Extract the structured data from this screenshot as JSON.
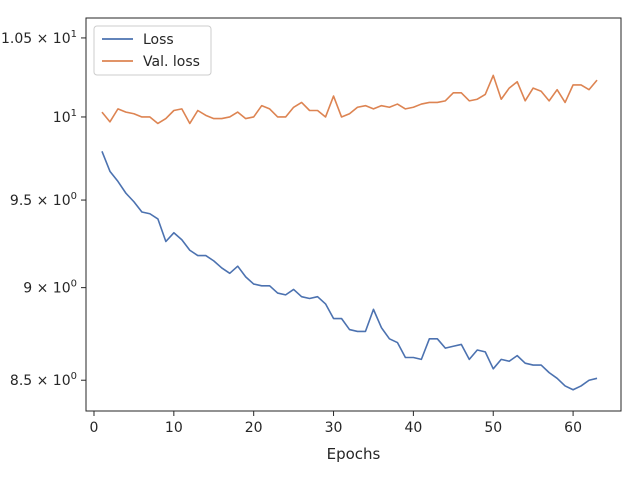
{
  "chart_data": {
    "type": "line",
    "title": "",
    "xlabel": "Epochs",
    "ylabel": "",
    "xlim": [
      -1,
      66
    ],
    "ylim": [
      8.34,
      10.63
    ],
    "yscale": "log",
    "grid": false,
    "legend_placement": "top-left",
    "x_ticks": [
      0,
      10,
      20,
      30,
      40,
      50,
      60
    ],
    "x_tick_labels": [
      "0",
      "10",
      "20",
      "30",
      "40",
      "50",
      "60"
    ],
    "y_ticks": [
      {
        "value": 8.5,
        "mant": "8.5",
        "exp": "0"
      },
      {
        "value": 9.0,
        "mant": "9",
        "exp": "0"
      },
      {
        "value": 9.5,
        "mant": "9.5",
        "exp": "0"
      },
      {
        "value": 10.0,
        "plain": "10",
        "exp": "1"
      },
      {
        "value": 10.5,
        "mant": "1.05",
        "exp": "1"
      }
    ],
    "x": [
      1,
      2,
      3,
      4,
      5,
      6,
      7,
      8,
      9,
      10,
      11,
      12,
      13,
      14,
      15,
      16,
      17,
      18,
      19,
      20,
      21,
      22,
      23,
      24,
      25,
      26,
      27,
      28,
      29,
      30,
      31,
      32,
      33,
      34,
      35,
      36,
      37,
      38,
      39,
      40,
      41,
      42,
      43,
      44,
      45,
      46,
      47,
      48,
      49,
      50,
      51,
      52,
      53,
      54,
      55,
      56,
      57,
      58,
      59,
      60,
      61,
      62,
      63
    ],
    "series": [
      {
        "name": "Loss",
        "color": "#4c72b0",
        "values": [
          9.79,
          9.67,
          9.61,
          9.54,
          9.49,
          9.43,
          9.42,
          9.39,
          9.26,
          9.31,
          9.27,
          9.21,
          9.18,
          9.18,
          9.15,
          9.11,
          9.08,
          9.12,
          9.06,
          9.02,
          9.01,
          9.01,
          8.97,
          8.96,
          8.99,
          8.95,
          8.94,
          8.95,
          8.91,
          8.83,
          8.83,
          8.77,
          8.76,
          8.76,
          8.88,
          8.78,
          8.72,
          8.7,
          8.62,
          8.62,
          8.61,
          8.72,
          8.72,
          8.67,
          8.68,
          8.69,
          8.61,
          8.66,
          8.65,
          8.56,
          8.61,
          8.6,
          8.63,
          8.59,
          8.58,
          8.58,
          8.54,
          8.51,
          8.47,
          8.45,
          8.47,
          8.5,
          8.51
        ]
      },
      {
        "name": "Val. loss",
        "color": "#dd8452",
        "values": [
          10.03,
          9.97,
          10.05,
          10.03,
          10.02,
          10.0,
          10.0,
          9.96,
          9.99,
          10.04,
          10.05,
          9.96,
          10.04,
          10.01,
          9.99,
          9.99,
          10.0,
          10.03,
          9.99,
          10.0,
          10.07,
          10.05,
          10.0,
          10.0,
          10.06,
          10.09,
          10.04,
          10.04,
          10.0,
          10.13,
          10.0,
          10.02,
          10.06,
          10.07,
          10.05,
          10.07,
          10.06,
          10.08,
          10.05,
          10.06,
          10.08,
          10.09,
          10.09,
          10.1,
          10.15,
          10.15,
          10.1,
          10.11,
          10.14,
          10.26,
          10.11,
          10.18,
          10.22,
          10.1,
          10.18,
          10.16,
          10.1,
          10.17,
          10.09,
          10.2,
          10.2,
          10.17,
          10.23
        ]
      }
    ]
  }
}
